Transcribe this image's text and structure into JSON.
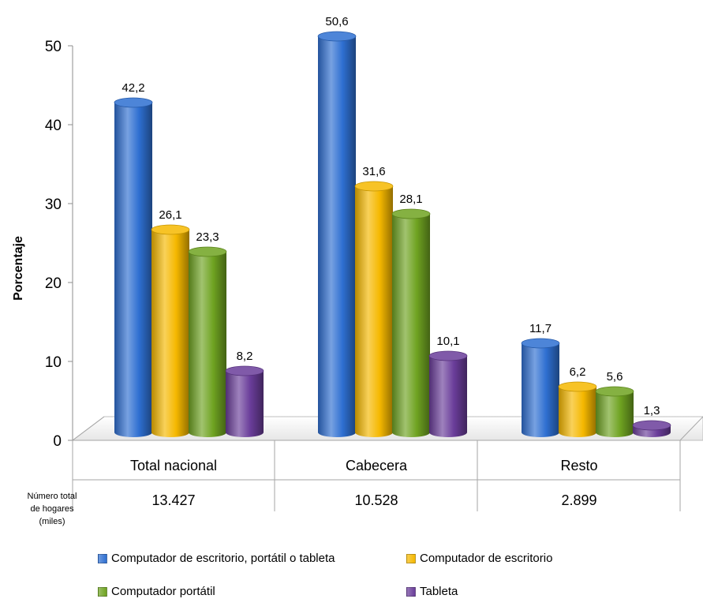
{
  "chart_data": {
    "type": "bar",
    "title": "",
    "xlabel": "",
    "ylabel": "Porcentaje",
    "ylim": [
      0,
      50
    ],
    "y_ticks": [
      "0",
      "10",
      "20",
      "30",
      "40",
      "50"
    ],
    "categories": [
      "Total nacional",
      "Cabecera",
      "Resto"
    ],
    "series": [
      {
        "name": "Computador de escritorio, portátil o tableta",
        "values": [
          42.2,
          50.6,
          11.7
        ],
        "labels": [
          "42,2",
          "50,6",
          "11,7"
        ],
        "color": "#2e6fd1"
      },
      {
        "name": "Computador de escritorio",
        "values": [
          26.1,
          31.6,
          6.2
        ],
        "labels": [
          "26,1",
          "31,6",
          "6,2"
        ],
        "color": "#f5b800"
      },
      {
        "name": "Computador portátil",
        "values": [
          23.3,
          28.1,
          5.6
        ],
        "labels": [
          "23,3",
          "28,1",
          "5,6"
        ],
        "color": "#6fa321"
      },
      {
        "name": "Tableta",
        "values": [
          8.2,
          10.1,
          1.3
        ],
        "labels": [
          "8,2",
          "10,1",
          "1,3"
        ],
        "color": "#6a3d9a"
      }
    ],
    "table_row": {
      "label_lines": [
        "Número total",
        "de hogares",
        "(miles)"
      ],
      "values": [
        "13.427",
        "10.528",
        "2.899"
      ]
    },
    "grid": false,
    "legend_position": "bottom"
  }
}
